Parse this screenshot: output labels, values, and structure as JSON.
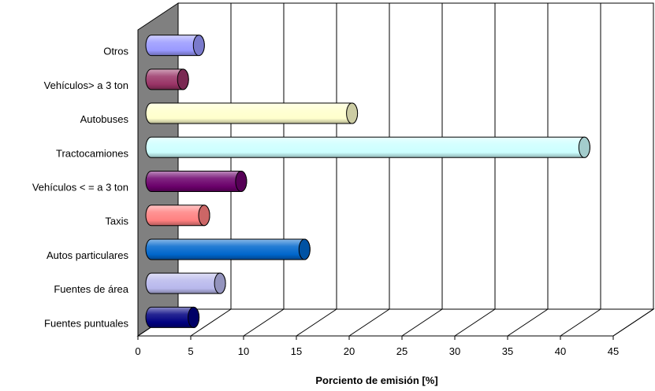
{
  "chart_data": {
    "type": "bar",
    "orientation": "horizontal",
    "style": "3d-cylinder",
    "categories": [
      "Fuentes puntuales",
      "Fuentes de área",
      "Autos particulares",
      "Taxis",
      "Vehículos < = a 3 ton",
      "Tractocamiones",
      "Autobuses",
      "Vehículos> a 3 ton",
      "Otros"
    ],
    "values": [
      4,
      6.5,
      14.5,
      5,
      8.5,
      41,
      19,
      3,
      4.5
    ],
    "colors": [
      "#000080",
      "#b8b8ec",
      "#0066cc",
      "#ff8080",
      "#6b006b",
      "#ccffff",
      "#ffffcc",
      "#993366",
      "#9999ff"
    ],
    "xlabel": "Porciento de emisión [%]",
    "xlim": [
      0,
      45
    ],
    "xticks": [
      "0",
      "5",
      "10",
      "15",
      "20",
      "25",
      "30",
      "35",
      "40",
      "45"
    ],
    "grid": true,
    "wall_color": "#808080"
  }
}
